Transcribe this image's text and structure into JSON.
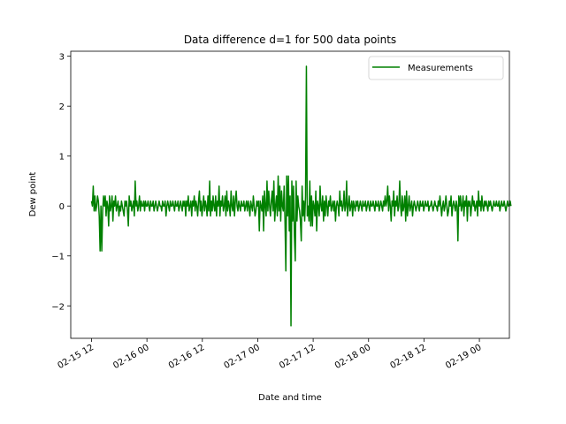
{
  "chart_data": {
    "type": "line",
    "title": "Data difference d=1 for 500 data points",
    "xlabel": "Date and time",
    "ylabel": "Dew point",
    "x_ticks": [
      "02-15 12",
      "02-16 00",
      "02-16 12",
      "02-17 00",
      "02-17 12",
      "02-18 00",
      "02-18 12",
      "02-19 00"
    ],
    "x_tick_hours": [
      12,
      24,
      36,
      48,
      60,
      72,
      84,
      96
    ],
    "y_ticks": [
      -2,
      -1,
      0,
      1,
      2,
      3
    ],
    "y_tick_labels": [
      "−2",
      "−1",
      "0",
      "1",
      "2",
      "3"
    ],
    "xlim_hours": [
      7.5,
      102.5
    ],
    "ylim": [
      -2.65,
      3.1
    ],
    "grid": false,
    "legend": "top-right",
    "series": [
      {
        "name": "Measurements",
        "color": "#008000",
        "hours_start": 12,
        "hours_step": 0.1854,
        "values": [
          0.1,
          0.0,
          0.4,
          -0.1,
          0.2,
          -0.1,
          0.0,
          0.2,
          0.1,
          -0.2,
          -0.9,
          0.0,
          -0.9,
          -0.1,
          0.2,
          0.0,
          0.2,
          -0.2,
          0.1,
          0.0,
          -0.4,
          0.2,
          -0.1,
          0.0,
          0.2,
          -0.3,
          0.1,
          0.0,
          0.2,
          -0.1,
          0.0,
          0.1,
          -0.2,
          0.0,
          -0.1,
          0.1,
          0.0,
          -0.1,
          -0.2,
          0.1,
          0.0,
          0.1,
          -0.1,
          -0.4,
          0.2,
          0.0,
          0.1,
          -0.1,
          0.0,
          0.1,
          -0.2,
          0.5,
          0.0,
          0.1,
          -0.1,
          0.0,
          0.2,
          -0.1,
          0.1,
          0.0,
          0.0,
          0.1,
          -0.1,
          0.1,
          0.0,
          0.0,
          0.1,
          0.0,
          -0.1,
          0.1,
          0.0,
          0.0,
          0.1,
          -0.1,
          0.0,
          0.1,
          0.0,
          -0.1,
          0.0,
          0.1,
          0.0,
          0.0,
          -0.1,
          0.1,
          0.0,
          0.0,
          0.1,
          -0.2,
          0.0,
          0.1,
          0.0,
          -0.1,
          0.1,
          0.0,
          0.0,
          0.1,
          0.0,
          -0.1,
          0.1,
          0.0,
          0.0,
          0.1,
          -0.1,
          0.0,
          0.1,
          0.0,
          -0.1,
          0.1,
          0.0,
          0.1,
          -0.2,
          0.1,
          0.0,
          0.2,
          -0.1,
          0.0,
          0.1,
          -0.2,
          0.1,
          0.0,
          0.2,
          -0.1,
          0.1,
          0.0,
          -0.2,
          0.1,
          0.3,
          -0.1,
          0.1,
          -0.2,
          0.0,
          0.2,
          -0.1,
          0.1,
          0.0,
          -0.2,
          0.2,
          -0.1,
          0.5,
          -0.2,
          0.1,
          -0.1,
          0.2,
          0.0,
          -0.1,
          0.2,
          -0.2,
          0.1,
          0.0,
          0.4,
          -0.2,
          0.1,
          0.0,
          0.2,
          -0.1,
          0.0,
          0.2,
          -0.2,
          0.3,
          -0.1,
          0.1,
          0.0,
          -0.2,
          0.3,
          0.0,
          -0.1,
          0.2,
          -0.2,
          0.1,
          0.3,
          0.0,
          -0.1,
          0.1,
          0.0,
          -0.1,
          0.1,
          0.0,
          0.0,
          0.1,
          -0.1,
          0.0,
          0.1,
          -0.1,
          0.1,
          0.0,
          -0.2,
          0.1,
          0.0,
          -0.1,
          0.2,
          0.0,
          -0.2,
          -0.1,
          0.1,
          0.0,
          0.1,
          -0.5,
          0.1,
          0.0,
          -0.1,
          0.2,
          -0.5,
          0.3,
          0.0,
          -0.2,
          0.5,
          -0.1,
          0.3,
          0.0,
          -0.2,
          0.1,
          0.3,
          -0.1,
          0.5,
          -0.3,
          0.0,
          0.2,
          -0.2,
          0.6,
          -0.1,
          0.4,
          -0.3,
          0.3,
          0.0,
          -0.1,
          0.4,
          -0.3,
          -1.3,
          0.6,
          -0.2,
          0.6,
          -0.5,
          0.2,
          -2.4,
          0.5,
          -0.3,
          0.4,
          -0.6,
          -1.1,
          0.5,
          -0.3,
          0.2,
          0.0,
          -0.1,
          -0.3,
          -0.7,
          0.4,
          -0.2,
          0.1,
          -0.3,
          0.2,
          2.8,
          -0.2,
          0.0,
          -0.3,
          0.5,
          -0.4,
          0.2,
          -0.4,
          0.1,
          0.0,
          -0.2,
          0.3,
          -0.5,
          0.1,
          0.0,
          -0.2,
          0.4,
          0.0,
          -0.1,
          0.2,
          -0.3,
          0.1,
          -0.2,
          0.2,
          0.0,
          -0.2,
          0.1,
          0.0,
          0.2,
          -0.1,
          0.0,
          0.1,
          -0.1,
          0.1,
          -0.3,
          0.0,
          0.1,
          0.0,
          -0.2,
          0.3,
          0.0,
          0.1,
          -0.1,
          0.0,
          0.3,
          -0.1,
          0.0,
          0.5,
          -0.2,
          0.0,
          0.2,
          -0.1,
          0.0,
          0.1,
          -0.2,
          0.1,
          0.0,
          -0.1,
          0.1,
          0.0,
          0.1,
          -0.1,
          0.0,
          0.1,
          0.0,
          -0.1,
          0.1,
          0.0,
          0.0,
          0.1,
          -0.1,
          0.0,
          0.1,
          0.0,
          -0.1,
          0.1,
          0.0,
          0.0,
          0.1,
          0.0,
          -0.1,
          0.1,
          0.0,
          0.0,
          0.1,
          -0.1,
          0.0,
          0.1,
          0.0,
          -0.1,
          0.1,
          0.0,
          0.2,
          0.0,
          0.1,
          0.4,
          -0.1,
          0.2,
          0.0,
          -0.3,
          0.1,
          0.0,
          0.3,
          -0.2,
          0.1,
          0.0,
          0.2,
          -0.1,
          0.0,
          0.5,
          0.0,
          -0.2,
          0.2,
          -0.1,
          0.0,
          0.2,
          -0.3,
          0.3,
          -0.2,
          0.0,
          0.2,
          -0.1,
          0.0,
          0.1,
          -0.2,
          0.0,
          0.1,
          0.0,
          -0.1,
          0.0,
          0.1,
          0.0,
          -0.1,
          0.1,
          0.0,
          0.0,
          0.1,
          -0.1,
          0.0,
          0.1,
          0.0,
          0.0,
          0.1,
          -0.1,
          0.0,
          0.0,
          0.1,
          0.0,
          -0.1,
          0.0,
          0.1,
          0.0,
          0.0,
          -0.1,
          0.1,
          0.0,
          0.2,
          0.0,
          -0.2,
          0.0,
          0.1,
          -0.1,
          0.0,
          0.2,
          0.0,
          -0.2,
          -0.1,
          0.1,
          0.0,
          0.2,
          -0.2,
          0.0,
          0.1,
          0.0,
          -0.1,
          0.1,
          0.0,
          -0.7,
          0.2,
          0.0,
          0.2,
          -0.1,
          0.0,
          0.2,
          -0.2,
          0.1,
          0.0,
          0.2,
          -0.3,
          0.1,
          0.0,
          0.1,
          -0.2,
          0.0,
          0.2,
          0.0,
          0.1,
          -0.1,
          0.0,
          0.1,
          -0.2,
          0.3,
          0.0,
          0.1,
          -0.1,
          0.2,
          0.0,
          -0.1,
          0.1,
          0.0,
          0.1,
          0.0,
          -0.1,
          0.1,
          0.0,
          0.1,
          0.0,
          -0.1,
          0.0,
          0.1,
          0.0,
          0.0,
          0.1,
          0.0,
          0.0,
          0.1,
          -0.1,
          0.0,
          0.1,
          0.0,
          0.0,
          0.1,
          0.0,
          -0.1,
          0.0,
          0.1,
          0.0,
          0.0,
          0.1,
          0.0
        ]
      }
    ]
  }
}
